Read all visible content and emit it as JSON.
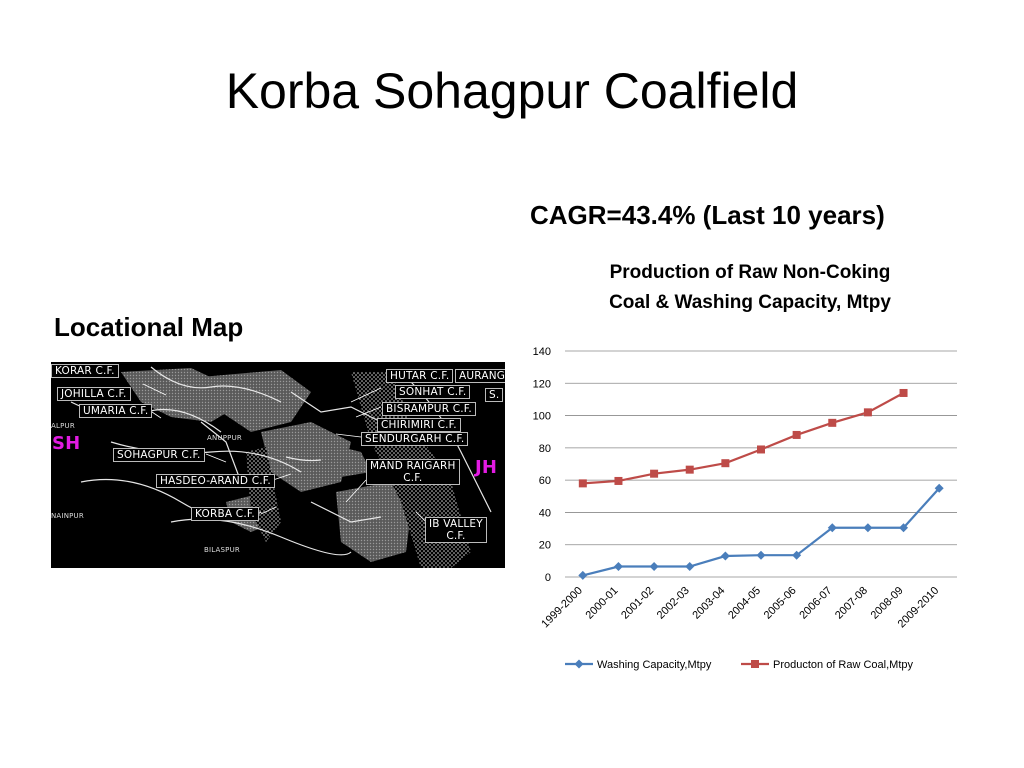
{
  "slide": {
    "title": "Korba Sohagpur Coalfield"
  },
  "map": {
    "heading": "Locational Map",
    "labels": {
      "korar": "KORAR C.F.",
      "johilla": "JOHILLA C.F.",
      "umaria": "UMARIA C.F.",
      "sohagpur": "SOHAGPUR C.F.",
      "hasdeo": "HASDEO-ARAND C.F.",
      "korba": "KORBA C.F.",
      "hutar": "HUTAR C.F.",
      "auranga": "AURANG",
      "s": "S.",
      "sonhat": "SONHAT C.F.",
      "bisrampur": "BISRAMPUR C.F.",
      "chirimiri": "CHIRIMIRI C.F.",
      "sendurgarh": "SENDURGARH C.F.",
      "mand_line1": "MAND RAIGARH",
      "mand_line2": "C.F.",
      "ib_line1": "IB VALLEY",
      "ib_line2": "C.F.",
      "sh": "SH",
      "jh": "JH",
      "alpur": "ALPUR",
      "nainpur": "NAINPUR",
      "bilaspur": "BILASPUR",
      "anuppur": "ANUPPUR"
    }
  },
  "cagr": "CAGR=43.4% (Last 10 years)",
  "chart_data": {
    "type": "line",
    "title_line1": "Production of Raw Non-Coking",
    "title_line2": "Coal & Washing Capacity, Mtpy",
    "categories": [
      "1999-2000",
      "2000-01",
      "2001-02",
      "2002-03",
      "2003-04",
      "2004-05",
      "2005-06",
      "2006-07",
      "2007-08",
      "2008-09",
      "2009-2010"
    ],
    "ylim": [
      0,
      140
    ],
    "yticks": [
      0,
      20,
      40,
      60,
      80,
      100,
      120,
      140
    ],
    "grid": true,
    "legend_position": "bottom",
    "series": [
      {
        "name": "Washing Capacity,Mtpy",
        "color": "#4a7ebb",
        "marker": "diamond",
        "values": [
          1,
          6.5,
          6.5,
          6.5,
          13,
          13.5,
          13.5,
          30.5,
          30.5,
          30.5,
          55
        ]
      },
      {
        "name": "Producton of Raw Coal,Mtpy",
        "color": "#be4b48",
        "marker": "square",
        "values": [
          58,
          59.5,
          64,
          66.5,
          70.5,
          79,
          88,
          95.5,
          102,
          114,
          null
        ]
      }
    ]
  }
}
